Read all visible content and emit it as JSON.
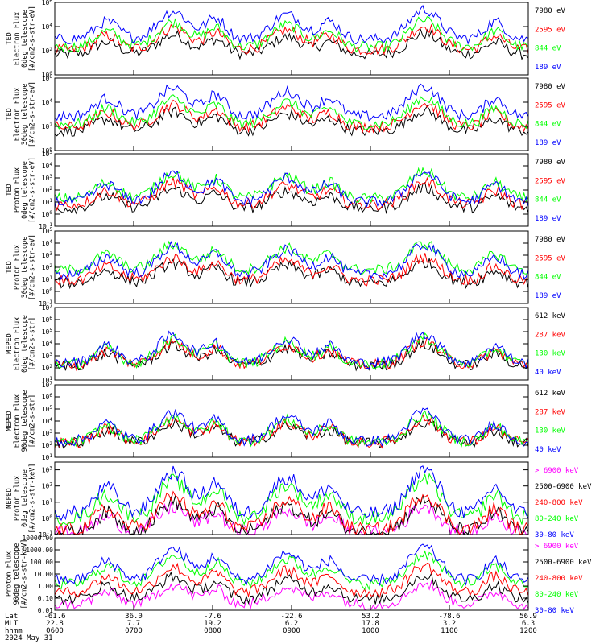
{
  "colors": {
    "blue": "#0000ff",
    "red": "#ff0000",
    "green": "#00ff00",
    "black": "#000000",
    "magenta": "#ff00ff"
  },
  "chart_data": [
    {
      "type": "line",
      "scale": "log",
      "ylabel": [
        "TED",
        "Electron Flux",
        "0deg telescope",
        "[#/cm2-s-str-eV]"
      ],
      "yticks": [
        {
          "v": 1.0,
          "t": "10^0"
        },
        {
          "v": 100.0,
          "t": "10^2"
        },
        {
          "v": 10000.0,
          "t": "10^4"
        },
        {
          "v": 1000000.0,
          "t": "10^6"
        }
      ],
      "ylim": [
        1,
        1000000
      ],
      "series": [
        {
          "name": "7980 eV",
          "color": "#000000",
          "base": 50
        },
        {
          "name": "2595 eV",
          "color": "#ff0000",
          "base": 120
        },
        {
          "name": "844 eV",
          "color": "#00ff00",
          "base": 200
        },
        {
          "name": "189 eV",
          "color": "#0000ff",
          "base": 900
        }
      ]
    },
    {
      "type": "line",
      "scale": "log",
      "ylabel": [
        "TED",
        "Electron Flux",
        "30deg telescope",
        "[#/cm2-s-str-eV]"
      ],
      "yticks": [
        {
          "v": 1.0,
          "t": "10^0"
        },
        {
          "v": 100.0,
          "t": "10^2"
        },
        {
          "v": 10000.0,
          "t": "10^4"
        },
        {
          "v": 1000000.0,
          "t": "10^6"
        }
      ],
      "ylim": [
        1,
        1000000
      ],
      "series": [
        {
          "name": "7980 eV",
          "color": "#000000",
          "base": 40
        },
        {
          "name": "2595 eV",
          "color": "#ff0000",
          "base": 90
        },
        {
          "name": "844 eV",
          "color": "#00ff00",
          "base": 150
        },
        {
          "name": "189 eV",
          "color": "#0000ff",
          "base": 700
        }
      ]
    },
    {
      "type": "line",
      "scale": "log",
      "ylabel": [
        "TED",
        "Proton Flux",
        "0deg telescope",
        "[#/cm2-s-str-eV]"
      ],
      "yticks": [
        {
          "v": 0.1,
          "t": "10^-1"
        },
        {
          "v": 1.0,
          "t": "10^0"
        },
        {
          "v": 10.0,
          "t": "10^1"
        },
        {
          "v": 100.0,
          "t": "10^2"
        },
        {
          "v": 1000.0,
          "t": "10^3"
        },
        {
          "v": 10000.0,
          "t": "10^4"
        },
        {
          "v": 100000.0,
          "t": "10^5"
        }
      ],
      "ylim": [
        0.1,
        100000
      ],
      "series": [
        {
          "name": "7980 eV",
          "color": "#000000",
          "base": 3
        },
        {
          "name": "2595 eV",
          "color": "#ff0000",
          "base": 6
        },
        {
          "name": "844 eV",
          "color": "#00ff00",
          "base": 20
        },
        {
          "name": "189 eV",
          "color": "#0000ff",
          "base": 10
        }
      ]
    },
    {
      "type": "line",
      "scale": "log",
      "ylabel": [
        "TED",
        "Proton Flux",
        "30deg telescope",
        "[#/cm2-s-str-eV]"
      ],
      "yticks": [
        {
          "v": 0.1,
          "t": "10^-1"
        },
        {
          "v": 1.0,
          "t": "10^0"
        },
        {
          "v": 10.0,
          "t": "10^1"
        },
        {
          "v": 100.0,
          "t": "10^2"
        },
        {
          "v": 1000.0,
          "t": "10^3"
        },
        {
          "v": 10000.0,
          "t": "10^4"
        },
        {
          "v": 100000.0,
          "t": "10^5"
        }
      ],
      "ylim": [
        0.1,
        100000
      ],
      "series": [
        {
          "name": "7980 eV",
          "color": "#000000",
          "base": 5
        },
        {
          "name": "2595 eV",
          "color": "#ff0000",
          "base": 8
        },
        {
          "name": "844 eV",
          "color": "#00ff00",
          "base": 60
        },
        {
          "name": "189 eV",
          "color": "#0000ff",
          "base": 25
        }
      ]
    },
    {
      "type": "line",
      "scale": "log",
      "ylabel": [
        "MEPED",
        "Electron Flux",
        "0deg telescope",
        "[#/cm2-s-str]"
      ],
      "yticks": [
        {
          "v": 10.0,
          "t": "10^1"
        },
        {
          "v": 100.0,
          "t": "10^2"
        },
        {
          "v": 1000.0,
          "t": "10^3"
        },
        {
          "v": 10000.0,
          "t": "10^4"
        },
        {
          "v": 100000.0,
          "t": "10^5"
        },
        {
          "v": 1000000.0,
          "t": "10^6"
        },
        {
          "v": 10000000.0,
          "t": "10^7"
        }
      ],
      "ylim": [
        10,
        10000000
      ],
      "series": [
        {
          "name": "612 keV",
          "color": "#000000",
          "base": 150
        },
        {
          "name": "287 keV",
          "color": "#ff0000",
          "base": 180
        },
        {
          "name": "130 keV",
          "color": "#00ff00",
          "base": 200
        },
        {
          "name": "40 keV",
          "color": "#0000ff",
          "base": 250
        }
      ]
    },
    {
      "type": "line",
      "scale": "log",
      "ylabel": [
        "MEPED",
        "Electron Flux",
        "90deg telescope",
        "[#/cm2-s-str]"
      ],
      "yticks": [
        {
          "v": 10.0,
          "t": "10^1"
        },
        {
          "v": 100.0,
          "t": "10^2"
        },
        {
          "v": 1000.0,
          "t": "10^3"
        },
        {
          "v": 10000.0,
          "t": "10^4"
        },
        {
          "v": 100000.0,
          "t": "10^5"
        },
        {
          "v": 1000000.0,
          "t": "10^6"
        },
        {
          "v": 10000000.0,
          "t": "10^7"
        }
      ],
      "ylim": [
        10,
        10000000
      ],
      "series": [
        {
          "name": "612 keV",
          "color": "#000000",
          "base": 150
        },
        {
          "name": "287 keV",
          "color": "#ff0000",
          "base": 160
        },
        {
          "name": "130 keV",
          "color": "#00ff00",
          "base": 180
        },
        {
          "name": "40 keV",
          "color": "#0000ff",
          "base": 220
        }
      ]
    },
    {
      "type": "line",
      "scale": "log",
      "ylabel": [
        "MEPED",
        "Proton Flux",
        "0deg telescope",
        "[#/cm2-s-str-keV]"
      ],
      "yticks": [
        {
          "v": 0.1,
          "t": "10^-1"
        },
        {
          "v": 1.0,
          "t": "10^0"
        },
        {
          "v": 10.0,
          "t": "10^1"
        },
        {
          "v": 100.0,
          "t": "10^2"
        },
        {
          "v": 1000.0,
          "t": "10^3"
        }
      ],
      "ylim": [
        0.1,
        3000
      ],
      "series": [
        {
          "name": "> 6900 keV",
          "color": "#ff00ff",
          "base": 0.12
        },
        {
          "name": "2500-6900 keV",
          "color": "#000000",
          "base": 0.15
        },
        {
          "name": "240-800 keV",
          "color": "#ff0000",
          "base": 0.2
        },
        {
          "name": "80-240 keV",
          "color": "#00ff00",
          "base": 1.0
        },
        {
          "name": "30-80 keV",
          "color": "#0000ff",
          "base": 2.0
        }
      ]
    },
    {
      "type": "line",
      "scale": "log",
      "ylabel": [
        "Proton Flux",
        "90deg telescope",
        "[#/cm2-s-str-keV]"
      ],
      "yticks": [
        {
          "v": 0.01,
          "t": "0.01"
        },
        {
          "v": 0.1,
          "t": "0.10"
        },
        {
          "v": 1,
          "t": "1.00"
        },
        {
          "v": 10,
          "t": "10.00"
        },
        {
          "v": 100,
          "t": "100.00"
        },
        {
          "v": 1000,
          "t": "1000.00"
        },
        {
          "v": 10000,
          "t": "10000.00"
        }
      ],
      "ylim": [
        0.01,
        10000
      ],
      "series": [
        {
          "name": "> 6900 keV",
          "color": "#ff00ff",
          "base": 0.03
        },
        {
          "name": "2500-6900 keV",
          "color": "#000000",
          "base": 0.08
        },
        {
          "name": "240-800 keV",
          "color": "#ff0000",
          "base": 0.3
        },
        {
          "name": "80-240 keV",
          "color": "#00ff00",
          "base": 1.5
        },
        {
          "name": "30-80 keV",
          "color": "#0000ff",
          "base": 3
        }
      ]
    }
  ],
  "x_axis": {
    "row_labels": [
      "Lat",
      "MLT",
      "hhmm"
    ],
    "columns": [
      {
        "lat": "-61.6",
        "mlt": "22.8",
        "hhmm": "0600"
      },
      {
        "lat": "36.0",
        "mlt": "7.7",
        "hhmm": "0700"
      },
      {
        "lat": "-7.6",
        "mlt": "19.2",
        "hhmm": "0800"
      },
      {
        "lat": "-22.6",
        "mlt": "6.2",
        "hhmm": "0900"
      },
      {
        "lat": "53.2",
        "mlt": "17.8",
        "hhmm": "1000"
      },
      {
        "lat": "-78.6",
        "mlt": "3.2",
        "hhmm": "1100"
      },
      {
        "lat": "56.9",
        "mlt": "6.3",
        "hhmm": "1200"
      }
    ],
    "date": "2024 May 31"
  }
}
